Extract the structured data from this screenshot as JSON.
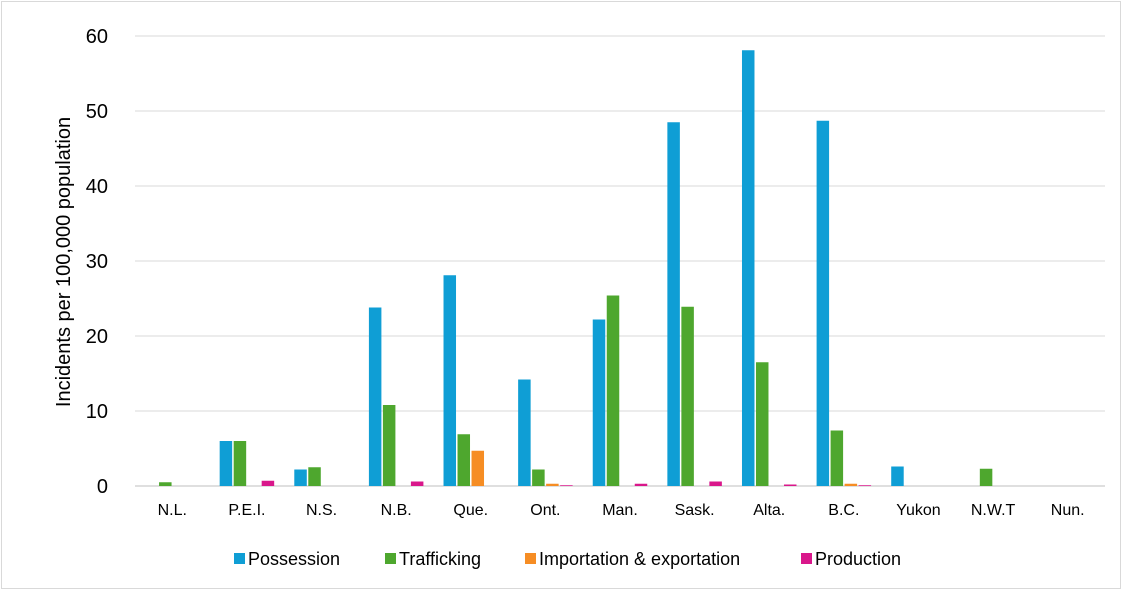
{
  "chart_data": {
    "type": "bar",
    "title": "",
    "xlabel": "",
    "ylabel": "Incidents per 100,000 population",
    "ylim": [
      0,
      60
    ],
    "yticks": [
      0,
      10,
      20,
      30,
      40,
      50,
      60
    ],
    "grid": true,
    "legend_position": "bottom",
    "categories": [
      "N.L.",
      "P.E.I.",
      "N.S.",
      "N.B.",
      "Que.",
      "Ont.",
      "Man.",
      "Sask.",
      "Alta.",
      "B.C.",
      "Yukon",
      "N.W.T",
      "Nun."
    ],
    "series": [
      {
        "name": "Possession",
        "color": "#0f9ed5",
        "values": [
          0,
          6.0,
          2.2,
          23.8,
          28.1,
          14.2,
          22.2,
          48.5,
          58.1,
          48.7,
          2.6,
          0,
          0
        ]
      },
      {
        "name": "Trafficking",
        "color": "#4ea72e",
        "values": [
          0.5,
          6.0,
          2.5,
          10.8,
          6.9,
          2.2,
          25.4,
          23.9,
          16.5,
          7.4,
          0,
          2.3,
          0
        ]
      },
      {
        "name": "Importation & exportation",
        "color": "#f68d24",
        "values": [
          0,
          0,
          0,
          0,
          4.7,
          0.3,
          0,
          0,
          0,
          0.3,
          0,
          0,
          0
        ]
      },
      {
        "name": "Production",
        "color": "#d9178b",
        "values": [
          0,
          0.7,
          0,
          0.6,
          0,
          0.1,
          0.3,
          0.6,
          0.2,
          0.1,
          0,
          0,
          0
        ]
      }
    ]
  }
}
